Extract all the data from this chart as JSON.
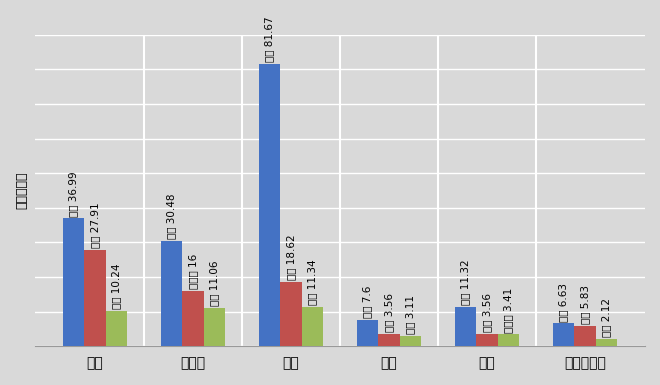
{
  "categories": [
    "石油",
    "天然气",
    "煤炭",
    "核能",
    "水电",
    "可再生能源"
  ],
  "series": [
    {
      "color": "#4472C4",
      "values": [
        36.99,
        30.48,
        81.67,
        7.6,
        11.32,
        6.63
      ],
      "labels": [
        "美国 36.99",
        "美国 30.48",
        "中国 81.67",
        "美国 7.6",
        "中国 11.32",
        "中国 6.63"
      ]
    },
    {
      "color": "#C0504D",
      "values": [
        27.91,
        16,
        18.62,
        3.56,
        3.56,
        5.83
      ],
      "labels": [
        "中国 27.91",
        "俄罗斯 16",
        "印度 18.62",
        "法国 3.56",
        "巴西 3.56",
        "美国 5.83"
      ]
    },
    {
      "color": "#9BBB59",
      "values": [
        10.24,
        11.06,
        11.34,
        3.11,
        3.41,
        2.12
      ],
      "labels": [
        "印度 10.24",
        "中国 11.06",
        "美国 11.34",
        "中国 3.11",
        "加拿大 3.41",
        "德国 2.12"
      ]
    }
  ],
  "ylabel": "单位：艾焦",
  "ylim": [
    0,
    90
  ],
  "background_color": "#D9D9D9",
  "bar_width": 0.22,
  "grid_color": "#FFFFFF",
  "label_fontsize": 7.5
}
